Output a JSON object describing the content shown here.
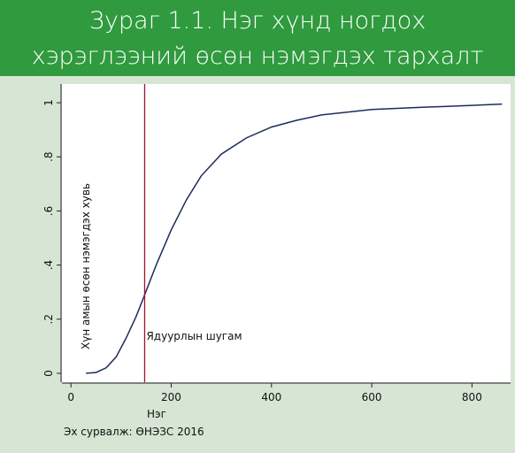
{
  "chart_data": {
    "type": "line",
    "title": [
      "Зураг 1.1. Нэг хүнд ногдох",
      "хэрэглээний өсөн нэмэгдэх тархалт"
    ],
    "xlabel": "Нэг",
    "ylabel": "Хүн амын өсөн нэмэгдэх хувь",
    "source": "Эх сурвалж: ӨНЭЗС 2016",
    "x": [
      30,
      50,
      70,
      90,
      110,
      130,
      147,
      170,
      200,
      230,
      260,
      300,
      350,
      400,
      450,
      500,
      600,
      700,
      800,
      860
    ],
    "series": [
      {
        "color": "#1c2b5c",
        "values": [
          0.0,
          0.003,
          0.02,
          0.06,
          0.13,
          0.21,
          0.29,
          0.4,
          0.53,
          0.64,
          0.73,
          0.81,
          0.87,
          0.91,
          0.935,
          0.955,
          0.975,
          0.983,
          0.99,
          0.995
        ]
      }
    ],
    "poverty_line": {
      "x": 147,
      "label": "Ядуурлын шугам",
      "color": "#a3122f"
    },
    "xlim": [
      -18,
      877
    ],
    "ylim": [
      -0.033,
      1.069
    ],
    "xticks": [
      0,
      200,
      400,
      600,
      800
    ],
    "yticks": [
      0,
      {
        "value": 0.2,
        "label": ".2"
      },
      {
        "value": 0.4,
        "label": ".4"
      },
      {
        "value": 0.6,
        "label": ".6"
      },
      {
        "value": 0.8,
        "label": ".8"
      },
      1
    ]
  }
}
